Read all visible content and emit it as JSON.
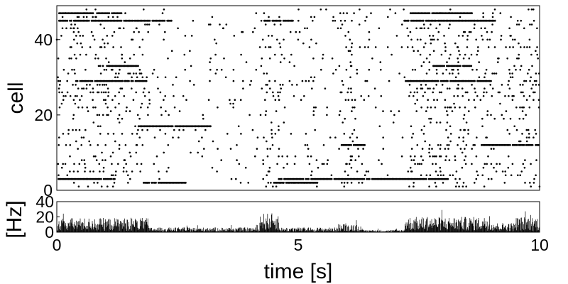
{
  "chart_data": [
    {
      "type": "scatter",
      "title": "",
      "xlabel": "",
      "ylabel": "cell",
      "xlim": [
        0,
        10
      ],
      "ylim": [
        0,
        49
      ],
      "yticks": [
        0,
        20,
        40
      ],
      "marker_color": "#000000",
      "n_cells": 49,
      "bursts": [
        {
          "start": 0.0,
          "end": 1.9,
          "level": 0.5
        },
        {
          "start": 1.9,
          "end": 4.2,
          "level": 0.2
        },
        {
          "start": 4.2,
          "end": 4.6,
          "level": 0.65
        },
        {
          "start": 4.6,
          "end": 5.8,
          "level": 0.2
        },
        {
          "start": 5.8,
          "end": 6.3,
          "level": 0.35
        },
        {
          "start": 6.3,
          "end": 7.2,
          "level": 0.12
        },
        {
          "start": 7.2,
          "end": 9.0,
          "level": 0.55
        },
        {
          "start": 9.0,
          "end": 9.5,
          "level": 0.35
        },
        {
          "start": 9.5,
          "end": 10.0,
          "level": 0.55
        }
      ],
      "long_runs": [
        {
          "cell": 3,
          "start": 0.05,
          "end": 1.2
        },
        {
          "cell": 3,
          "start": 4.6,
          "end": 8.1
        },
        {
          "cell": 2,
          "start": 1.8,
          "end": 2.7
        },
        {
          "cell": 2,
          "start": 4.5,
          "end": 5.4
        },
        {
          "cell": 12,
          "start": 5.9,
          "end": 6.4
        },
        {
          "cell": 12,
          "start": 8.8,
          "end": 10.0
        },
        {
          "cell": 17,
          "start": 1.7,
          "end": 3.2
        },
        {
          "cell": 29,
          "start": 0.4,
          "end": 1.9
        },
        {
          "cell": 29,
          "start": 7.2,
          "end": 9.0
        },
        {
          "cell": 33,
          "start": 0.9,
          "end": 1.7
        },
        {
          "cell": 33,
          "start": 7.8,
          "end": 8.6
        },
        {
          "cell": 45,
          "start": 0.05,
          "end": 2.4
        },
        {
          "cell": 45,
          "start": 4.3,
          "end": 4.9
        },
        {
          "cell": 45,
          "start": 7.2,
          "end": 9.1
        },
        {
          "cell": 47,
          "start": 0.05,
          "end": 1.4
        },
        {
          "cell": 47,
          "start": 7.3,
          "end": 8.6
        }
      ]
    },
    {
      "type": "bar",
      "title": "",
      "xlabel": "time [s]",
      "ylabel": "[Hz]",
      "xlim": [
        0,
        10
      ],
      "ylim": [
        0,
        40
      ],
      "xticks": [
        0,
        5,
        10
      ],
      "yticks": [
        0,
        20,
        40
      ],
      "bar_color": "#000000",
      "bin_width": 0.01,
      "rate_levels": [
        {
          "start": 0.0,
          "end": 1.9,
          "rate": 12
        },
        {
          "start": 1.9,
          "end": 4.2,
          "rate": 4
        },
        {
          "start": 4.2,
          "end": 4.6,
          "rate": 16
        },
        {
          "start": 4.6,
          "end": 5.8,
          "rate": 4
        },
        {
          "start": 5.8,
          "end": 6.3,
          "rate": 7
        },
        {
          "start": 6.3,
          "end": 7.2,
          "rate": 2
        },
        {
          "start": 7.2,
          "end": 9.0,
          "rate": 13
        },
        {
          "start": 9.0,
          "end": 9.5,
          "rate": 8
        },
        {
          "start": 9.5,
          "end": 10.0,
          "rate": 13
        }
      ]
    }
  ]
}
